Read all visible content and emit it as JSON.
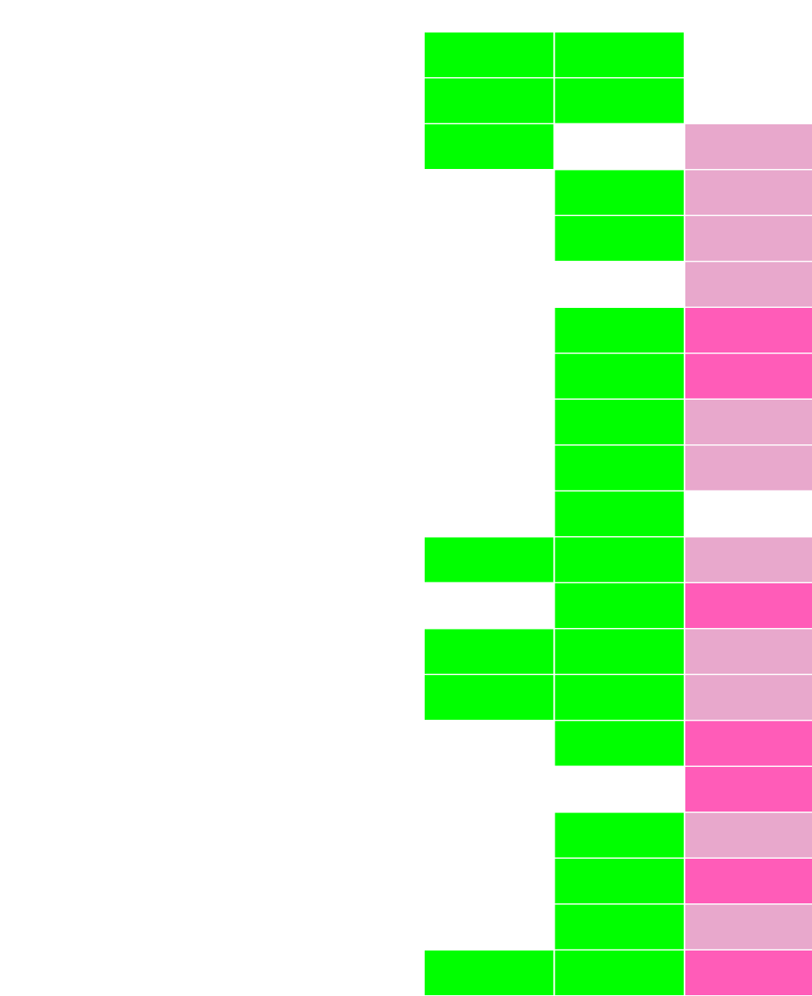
{
  "chart_data": {
    "type": "heatmap",
    "columns": 3,
    "colors": {
      "empty": "#ffffff",
      "green": "#00ff00",
      "light_pink": "#e8a8cc",
      "hot_pink": "#ff5cb8"
    },
    "rows": [
      [
        "green",
        "green",
        "empty"
      ],
      [
        "green",
        "green",
        "empty"
      ],
      [
        "green",
        "empty",
        "light_pink"
      ],
      [
        "empty",
        "green",
        "light_pink"
      ],
      [
        "empty",
        "green",
        "light_pink"
      ],
      [
        "empty",
        "empty",
        "light_pink"
      ],
      [
        "empty",
        "green",
        "hot_pink"
      ],
      [
        "empty",
        "green",
        "hot_pink"
      ],
      [
        "empty",
        "green",
        "light_pink"
      ],
      [
        "empty",
        "green",
        "light_pink"
      ],
      [
        "empty",
        "green",
        "empty"
      ],
      [
        "green",
        "green",
        "light_pink"
      ],
      [
        "empty",
        "green",
        "hot_pink"
      ],
      [
        "green",
        "green",
        "light_pink"
      ],
      [
        "green",
        "green",
        "light_pink"
      ],
      [
        "empty",
        "green",
        "hot_pink"
      ],
      [
        "empty",
        "empty",
        "hot_pink"
      ],
      [
        "empty",
        "green",
        "light_pink"
      ],
      [
        "empty",
        "green",
        "hot_pink"
      ],
      [
        "empty",
        "green",
        "light_pink"
      ],
      [
        "green",
        "green",
        "hot_pink"
      ]
    ]
  }
}
